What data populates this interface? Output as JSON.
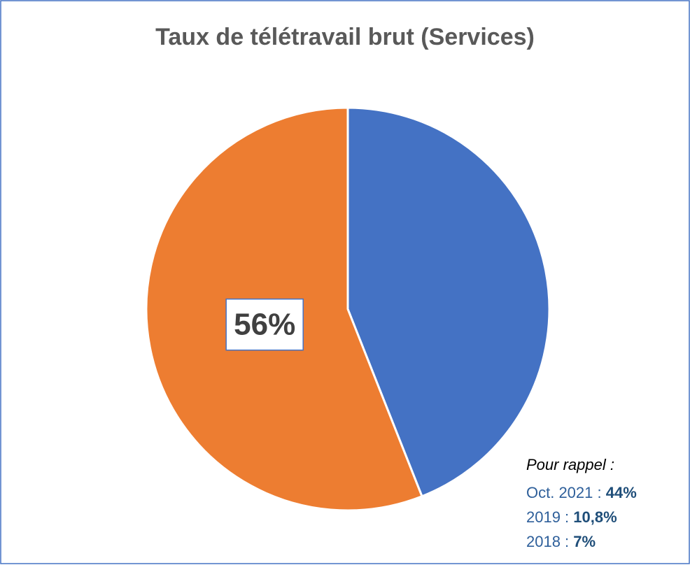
{
  "chart_data": {
    "type": "pie",
    "title": "Taux de télétravail brut (Services)",
    "categories": [
      null,
      null
    ],
    "values": [
      44,
      56
    ],
    "value_labels": [
      null,
      "56%"
    ],
    "colors": [
      "#4472c4",
      "#ed7d31"
    ],
    "annotation": {
      "heading": "Pour rappel :",
      "lines": [
        {
          "label": "Oct. 2021 :",
          "value": "44%"
        },
        {
          "label": "2019 :",
          "value": "10,8%"
        },
        {
          "label": "2018 :",
          "value": "7%"
        }
      ]
    }
  }
}
